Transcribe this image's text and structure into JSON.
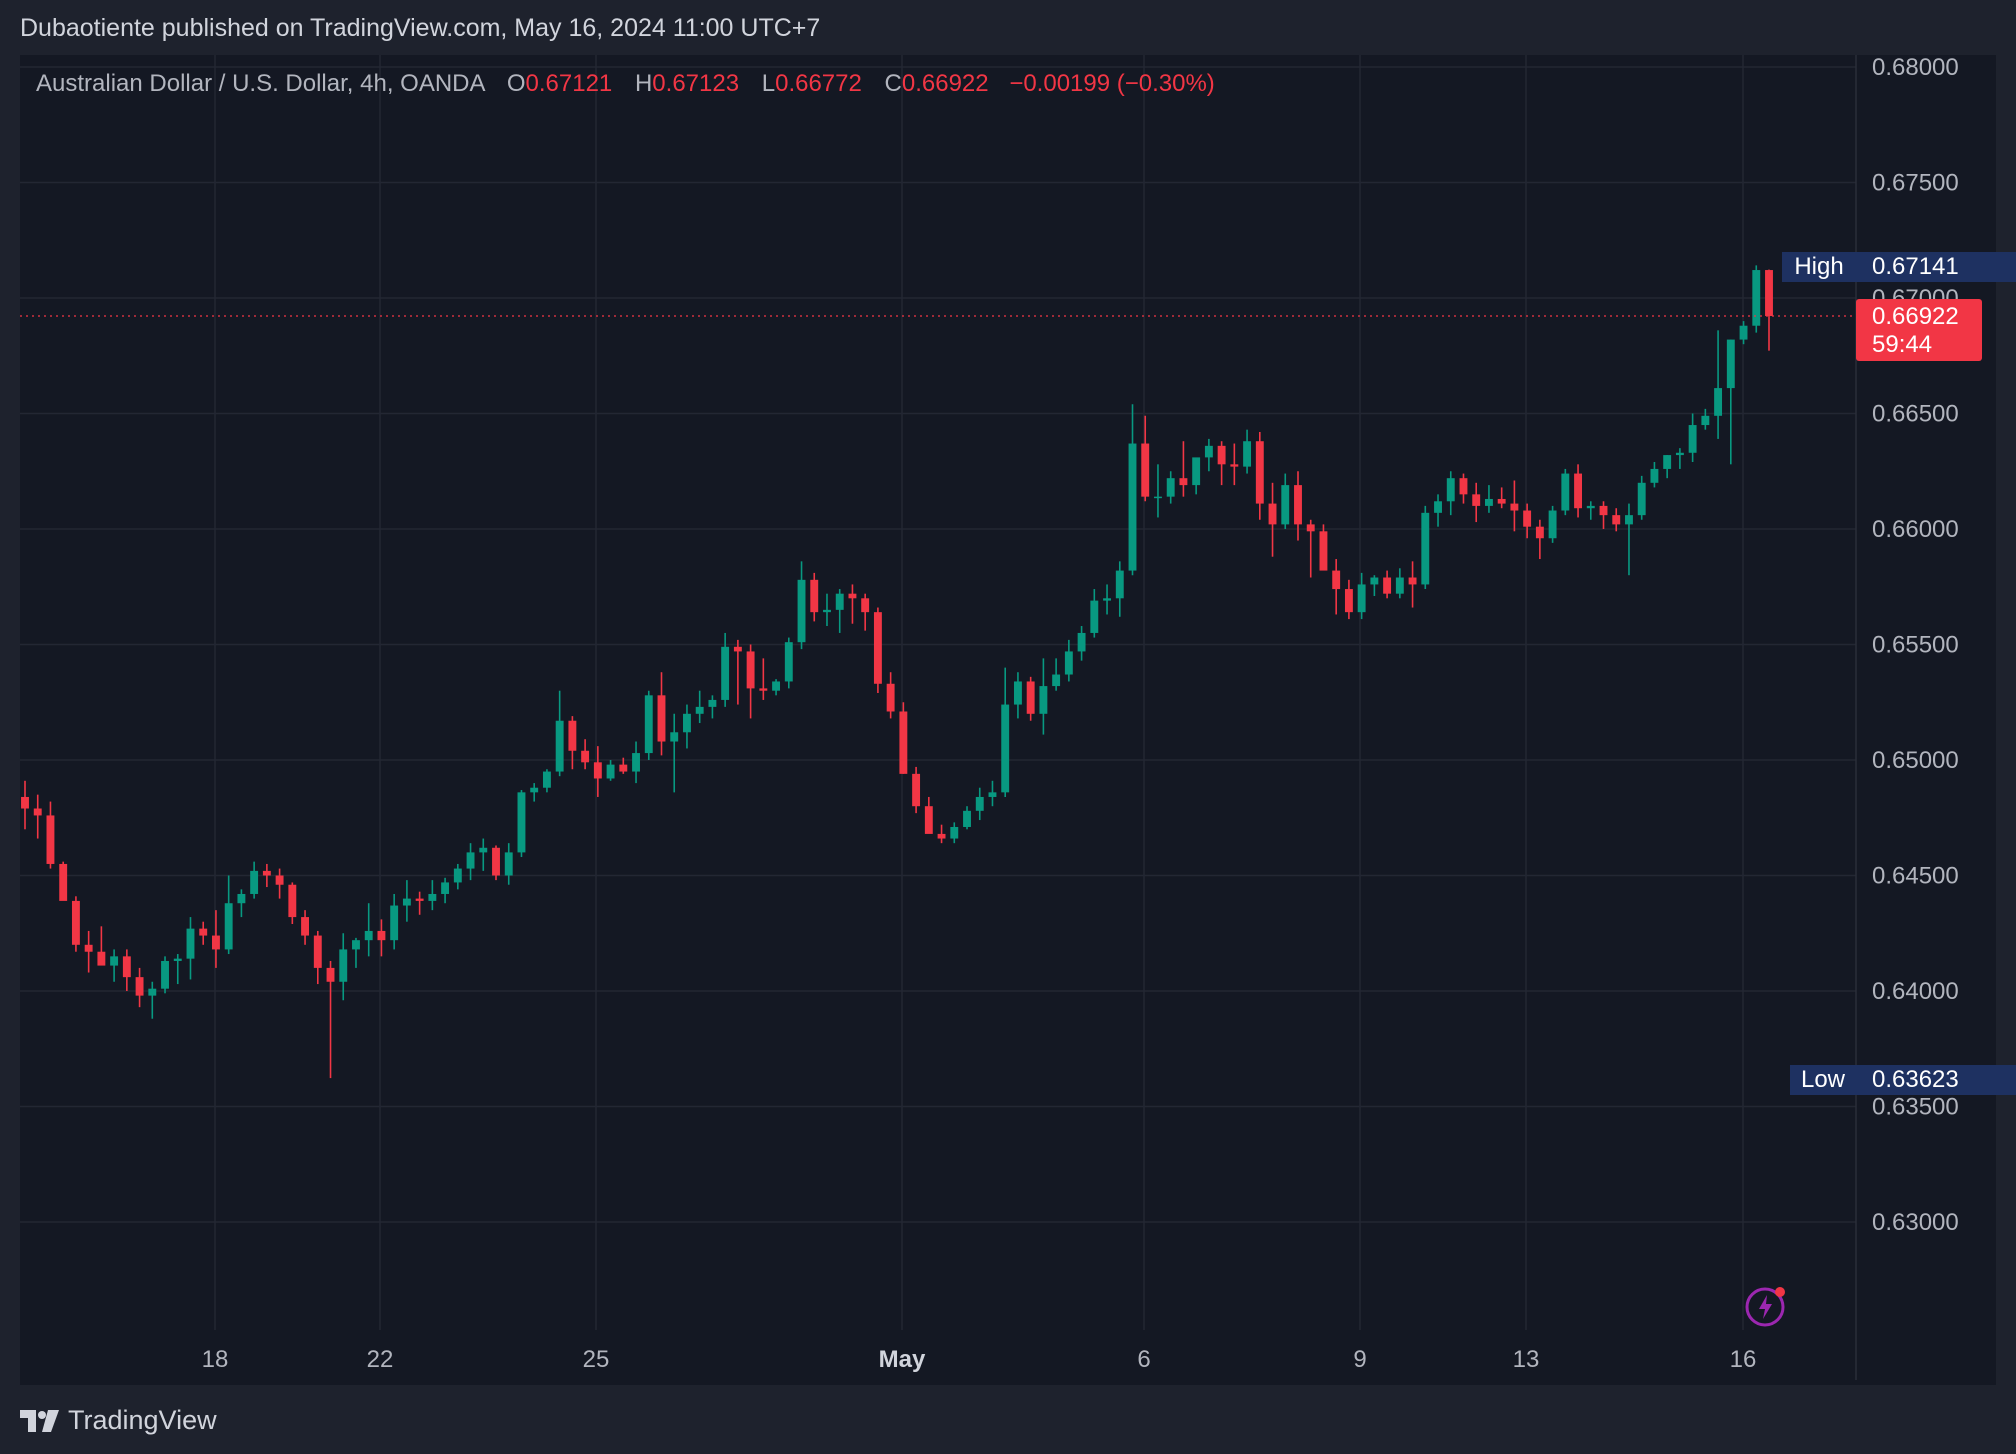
{
  "caption": "Dubaotiente published on TradingView.com, May 16, 2024 11:00 UTC+7",
  "legend": {
    "symbol": "Australian Dollar / U.S. Dollar, 4h, OANDA",
    "open_label": "O",
    "open": "0.67121",
    "high_label": "H",
    "high": "0.67123",
    "low_label": "L",
    "low": "0.66772",
    "close_label": "C",
    "close": "0.66922",
    "change": "−0.00199 (−0.30%)"
  },
  "price_axis": {
    "ticks": [
      "0.68000",
      "0.67500",
      "0.67000",
      "0.66500",
      "0.66000",
      "0.65500",
      "0.65000",
      "0.64500",
      "0.64000",
      "0.63500",
      "0.63000"
    ]
  },
  "time_axis": {
    "labels": [
      "18",
      "22",
      "25",
      "May",
      "6",
      "9",
      "13",
      "16"
    ],
    "bold": "May"
  },
  "badges": {
    "high_label": "High",
    "high_value": "0.67141",
    "low_label": "Low",
    "low_value": "0.63623",
    "last_price": "0.66922",
    "countdown": "59:44"
  },
  "footer": {
    "brand": "TradingView"
  },
  "colors": {
    "up": "#089981",
    "down": "#f23645",
    "background": "#141823",
    "badge_blue": "#1e3161",
    "last_price": "#f23645"
  },
  "chart_data": {
    "type": "candlestick",
    "symbol": "AUD/USD",
    "interval": "4h",
    "source": "OANDA",
    "ylim": [
      0.626,
      0.6805
    ],
    "y_ticks": [
      0.68,
      0.675,
      0.67,
      0.665,
      0.66,
      0.655,
      0.65,
      0.645,
      0.64,
      0.635,
      0.63
    ],
    "x_tick_labels": [
      "18",
      "22",
      "25",
      "May",
      "6",
      "9",
      "13",
      "16"
    ],
    "high_marker": 0.67141,
    "low_marker": 0.63623,
    "last_price": 0.66922,
    "ohlc": [
      [
        0.6484,
        0.6491,
        0.647,
        0.6479
      ],
      [
        0.6479,
        0.6485,
        0.6466,
        0.6476
      ],
      [
        0.6476,
        0.6482,
        0.6453,
        0.6455
      ],
      [
        0.6455,
        0.6456,
        0.6442,
        0.6439
      ],
      [
        0.6439,
        0.6441,
        0.6417,
        0.642
      ],
      [
        0.642,
        0.6426,
        0.6408,
        0.6417
      ],
      [
        0.6417,
        0.6428,
        0.6412,
        0.6411
      ],
      [
        0.6411,
        0.6418,
        0.6404,
        0.6415
      ],
      [
        0.6415,
        0.6418,
        0.64,
        0.6406
      ],
      [
        0.6406,
        0.641,
        0.6393,
        0.6398
      ],
      [
        0.6398,
        0.6404,
        0.6388,
        0.6401
      ],
      [
        0.6401,
        0.6415,
        0.6399,
        0.6413
      ],
      [
        0.6413,
        0.6416,
        0.6403,
        0.6414
      ],
      [
        0.6414,
        0.6432,
        0.6405,
        0.6427
      ],
      [
        0.6427,
        0.643,
        0.642,
        0.6424
      ],
      [
        0.6424,
        0.6435,
        0.641,
        0.6418
      ],
      [
        0.6418,
        0.645,
        0.6416,
        0.6438
      ],
      [
        0.6438,
        0.6444,
        0.6432,
        0.6442
      ],
      [
        0.6442,
        0.6456,
        0.644,
        0.6452
      ],
      [
        0.6452,
        0.6455,
        0.6445,
        0.645
      ],
      [
        0.645,
        0.6453,
        0.644,
        0.6446
      ],
      [
        0.6446,
        0.6447,
        0.6429,
        0.6432
      ],
      [
        0.6432,
        0.6435,
        0.642,
        0.6424
      ],
      [
        0.6424,
        0.6426,
        0.6403,
        0.641
      ],
      [
        0.641,
        0.6413,
        0.63623,
        0.6404
      ],
      [
        0.6404,
        0.6425,
        0.6396,
        0.6418
      ],
      [
        0.6418,
        0.6423,
        0.641,
        0.6422
      ],
      [
        0.6422,
        0.6438,
        0.6415,
        0.6426
      ],
      [
        0.6426,
        0.6431,
        0.6415,
        0.6422
      ],
      [
        0.6422,
        0.6442,
        0.6418,
        0.6437
      ],
      [
        0.6437,
        0.6448,
        0.643,
        0.644
      ],
      [
        0.644,
        0.6443,
        0.6433,
        0.6439
      ],
      [
        0.6439,
        0.6448,
        0.6435,
        0.6442
      ],
      [
        0.6442,
        0.6449,
        0.6438,
        0.6447
      ],
      [
        0.6447,
        0.6455,
        0.6444,
        0.6453
      ],
      [
        0.6453,
        0.6464,
        0.6448,
        0.646
      ],
      [
        0.646,
        0.6466,
        0.6452,
        0.6462
      ],
      [
        0.6462,
        0.6463,
        0.6448,
        0.645
      ],
      [
        0.645,
        0.6464,
        0.6446,
        0.646
      ],
      [
        0.646,
        0.6487,
        0.6458,
        0.6486
      ],
      [
        0.6486,
        0.649,
        0.6482,
        0.6488
      ],
      [
        0.6488,
        0.6496,
        0.6486,
        0.6495
      ],
      [
        0.6495,
        0.653,
        0.6493,
        0.6517
      ],
      [
        0.6517,
        0.6519,
        0.6496,
        0.6504
      ],
      [
        0.6504,
        0.6509,
        0.6496,
        0.6499
      ],
      [
        0.6499,
        0.6506,
        0.6484,
        0.6492
      ],
      [
        0.6492,
        0.65,
        0.6491,
        0.6498
      ],
      [
        0.6498,
        0.6501,
        0.6494,
        0.6495
      ],
      [
        0.6495,
        0.6508,
        0.649,
        0.6503
      ],
      [
        0.6503,
        0.653,
        0.65,
        0.6528
      ],
      [
        0.6528,
        0.6538,
        0.6502,
        0.6508
      ],
      [
        0.6508,
        0.652,
        0.6486,
        0.6512
      ],
      [
        0.6512,
        0.6524,
        0.6505,
        0.652
      ],
      [
        0.652,
        0.653,
        0.6516,
        0.6523
      ],
      [
        0.6523,
        0.6528,
        0.6518,
        0.6526
      ],
      [
        0.6526,
        0.6555,
        0.6523,
        0.6549
      ],
      [
        0.6549,
        0.6552,
        0.6524,
        0.6547
      ],
      [
        0.6547,
        0.655,
        0.6518,
        0.6531
      ],
      [
        0.6531,
        0.6544,
        0.6526,
        0.653
      ],
      [
        0.653,
        0.6535,
        0.6528,
        0.6534
      ],
      [
        0.6534,
        0.6553,
        0.6531,
        0.6551
      ],
      [
        0.6551,
        0.6586,
        0.6548,
        0.6578
      ],
      [
        0.6578,
        0.6581,
        0.656,
        0.6564
      ],
      [
        0.6564,
        0.6572,
        0.6558,
        0.6565
      ],
      [
        0.6565,
        0.6574,
        0.6555,
        0.6572
      ],
      [
        0.6572,
        0.6576,
        0.6559,
        0.657
      ],
      [
        0.657,
        0.6572,
        0.6556,
        0.6564
      ],
      [
        0.6564,
        0.6566,
        0.6529,
        0.6533
      ],
      [
        0.6533,
        0.6538,
        0.6518,
        0.6521
      ],
      [
        0.6521,
        0.6525,
        0.6494,
        0.6494
      ],
      [
        0.6494,
        0.6497,
        0.6477,
        0.648
      ],
      [
        0.648,
        0.6484,
        0.647,
        0.6468
      ],
      [
        0.6468,
        0.6472,
        0.6464,
        0.6466
      ],
      [
        0.6466,
        0.6473,
        0.6464,
        0.6471
      ],
      [
        0.6471,
        0.648,
        0.647,
        0.6478
      ],
      [
        0.6478,
        0.6488,
        0.6474,
        0.6484
      ],
      [
        0.6484,
        0.6491,
        0.648,
        0.6486
      ],
      [
        0.6486,
        0.654,
        0.6484,
        0.6524
      ],
      [
        0.6524,
        0.6538,
        0.6518,
        0.6534
      ],
      [
        0.6534,
        0.6536,
        0.6517,
        0.652
      ],
      [
        0.652,
        0.6544,
        0.6511,
        0.6532
      ],
      [
        0.6532,
        0.6544,
        0.653,
        0.6537
      ],
      [
        0.6537,
        0.6552,
        0.6534,
        0.6547
      ],
      [
        0.6547,
        0.6558,
        0.6543,
        0.6555
      ],
      [
        0.6555,
        0.6574,
        0.6553,
        0.6569
      ],
      [
        0.6569,
        0.6576,
        0.6563,
        0.657
      ],
      [
        0.657,
        0.6586,
        0.6562,
        0.6582
      ],
      [
        0.6582,
        0.6654,
        0.658,
        0.6637
      ],
      [
        0.6637,
        0.6649,
        0.6612,
        0.6614
      ],
      [
        0.6614,
        0.6628,
        0.6605,
        0.6614
      ],
      [
        0.6614,
        0.6625,
        0.6611,
        0.6622
      ],
      [
        0.6622,
        0.6638,
        0.6614,
        0.6619
      ],
      [
        0.6619,
        0.663,
        0.6615,
        0.6631
      ],
      [
        0.6631,
        0.6639,
        0.6625,
        0.6636
      ],
      [
        0.6636,
        0.6638,
        0.6619,
        0.6628
      ],
      [
        0.6628,
        0.6637,
        0.6619,
        0.6627
      ],
      [
        0.6627,
        0.6643,
        0.6624,
        0.6638
      ],
      [
        0.6638,
        0.6642,
        0.6604,
        0.6611
      ],
      [
        0.6611,
        0.662,
        0.6588,
        0.6602
      ],
      [
        0.6602,
        0.6624,
        0.66,
        0.6619
      ],
      [
        0.6619,
        0.6625,
        0.6595,
        0.6602
      ],
      [
        0.6602,
        0.6604,
        0.6579,
        0.6599
      ],
      [
        0.6599,
        0.6602,
        0.6586,
        0.6582
      ],
      [
        0.6582,
        0.6587,
        0.6563,
        0.6574
      ],
      [
        0.6574,
        0.6578,
        0.6561,
        0.6564
      ],
      [
        0.6564,
        0.6581,
        0.6561,
        0.6576
      ],
      [
        0.6576,
        0.658,
        0.6571,
        0.6579
      ],
      [
        0.6579,
        0.6582,
        0.657,
        0.6572
      ],
      [
        0.6572,
        0.6583,
        0.657,
        0.6579
      ],
      [
        0.6579,
        0.6586,
        0.6566,
        0.6576
      ],
      [
        0.6576,
        0.661,
        0.6574,
        0.6607
      ],
      [
        0.6607,
        0.6615,
        0.6601,
        0.6612
      ],
      [
        0.6612,
        0.6625,
        0.6606,
        0.6622
      ],
      [
        0.6622,
        0.6624,
        0.6611,
        0.6615
      ],
      [
        0.6615,
        0.662,
        0.6603,
        0.661
      ],
      [
        0.661,
        0.6619,
        0.6607,
        0.6613
      ],
      [
        0.6613,
        0.6618,
        0.6609,
        0.6611
      ],
      [
        0.6611,
        0.6621,
        0.6599,
        0.6608
      ],
      [
        0.6608,
        0.6611,
        0.6596,
        0.6601
      ],
      [
        0.6601,
        0.6604,
        0.6587,
        0.6596
      ],
      [
        0.6596,
        0.661,
        0.6594,
        0.6608
      ],
      [
        0.6608,
        0.6626,
        0.6606,
        0.6624
      ],
      [
        0.6624,
        0.6628,
        0.6605,
        0.6609
      ],
      [
        0.6609,
        0.6612,
        0.6604,
        0.661
      ],
      [
        0.661,
        0.6612,
        0.66,
        0.6606
      ],
      [
        0.6606,
        0.6609,
        0.6599,
        0.6602
      ],
      [
        0.6602,
        0.6611,
        0.658,
        0.6606
      ],
      [
        0.6606,
        0.6623,
        0.6604,
        0.662
      ],
      [
        0.662,
        0.6629,
        0.6618,
        0.6626
      ],
      [
        0.6626,
        0.6632,
        0.6622,
        0.6632
      ],
      [
        0.6632,
        0.6635,
        0.6626,
        0.6633
      ],
      [
        0.6633,
        0.665,
        0.6629,
        0.6645
      ],
      [
        0.6645,
        0.6652,
        0.6643,
        0.6649
      ],
      [
        0.6649,
        0.6686,
        0.6639,
        0.6661
      ],
      [
        0.6661,
        0.6682,
        0.6628,
        0.6682
      ],
      [
        0.6682,
        0.669,
        0.668,
        0.6688
      ],
      [
        0.6688,
        0.67141,
        0.6685,
        0.67121
      ],
      [
        0.67121,
        0.67123,
        0.66772,
        0.66922
      ]
    ]
  }
}
